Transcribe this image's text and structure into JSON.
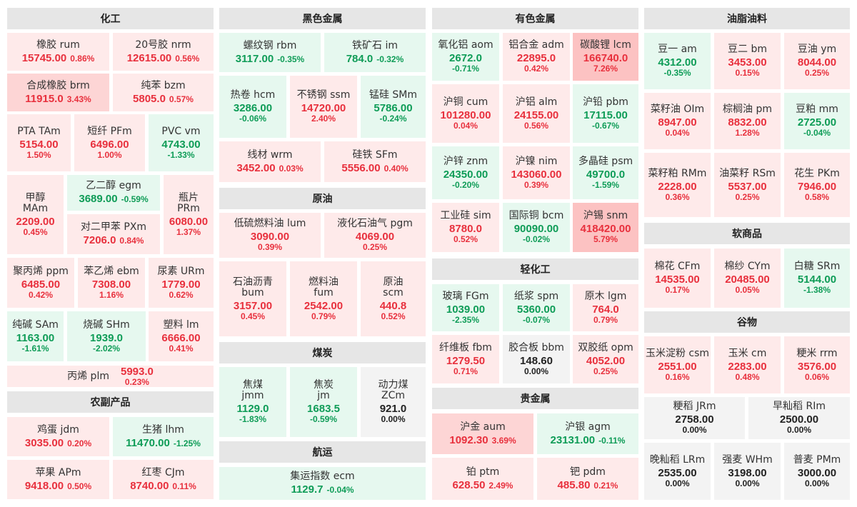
{
  "colors": {
    "up": "#e8303d",
    "down": "#0e9c57",
    "flat": "#222222",
    "header_bg": "#e6e6e6"
  },
  "sectors": {
    "chemical": "化工",
    "ferrous": "黑色金属",
    "nonferrous": "有色金属",
    "oils": "油脂油料",
    "crude": "原油",
    "agri": "农副产品",
    "coal": "煤炭",
    "light_chem": "轻化工",
    "softs": "软商品",
    "shipping": "航运",
    "precious": "贵金属",
    "grains": "谷物"
  },
  "contracts": [
    {
      "key": "rum",
      "name": "橡胶  rum",
      "price": "15745.00",
      "pct": "0.86%",
      "dir": "up"
    },
    {
      "key": "nrm",
      "name": "20号胶  nrm",
      "price": "12615.00",
      "pct": "0.56%",
      "dir": "up"
    },
    {
      "key": "brm",
      "name": "合成橡胶  brm",
      "price": "11915.0",
      "pct": "3.43%",
      "dir": "up"
    },
    {
      "key": "bzm",
      "name": "纯苯  bzm",
      "price": "5805.0",
      "pct": "0.57%",
      "dir": "up"
    },
    {
      "key": "tam",
      "name": "PTA  TAm",
      "price": "5154.00",
      "pct": "1.50%",
      "dir": "up"
    },
    {
      "key": "pfm",
      "name": "短纤  PFm",
      "price": "6496.00",
      "pct": "1.00%",
      "dir": "up"
    },
    {
      "key": "vm",
      "name": "PVC  vm",
      "price": "4743.00",
      "pct": "-1.33%",
      "dir": "dn"
    },
    {
      "key": "mam",
      "name": "甲醇\nMAm",
      "price": "2209.00",
      "pct": "0.45%",
      "dir": "up"
    },
    {
      "key": "egm",
      "name": "乙二醇  egm",
      "price": "3689.00",
      "pct": "-0.59%",
      "dir": "dn"
    },
    {
      "key": "pxm",
      "name": "对二甲苯  PXm",
      "price": "7206.0",
      "pct": "0.84%",
      "dir": "up"
    },
    {
      "key": "prm",
      "name": "瓶片\nPRm",
      "price": "6080.00",
      "pct": "1.37%",
      "dir": "up"
    },
    {
      "key": "ppm",
      "name": "聚丙烯  ppm",
      "price": "6485.00",
      "pct": "0.42%",
      "dir": "up"
    },
    {
      "key": "ebm",
      "name": "苯乙烯  ebm",
      "price": "7308.00",
      "pct": "1.16%",
      "dir": "up"
    },
    {
      "key": "urm",
      "name": "尿素  URm",
      "price": "1779.00",
      "pct": "0.62%",
      "dir": "up"
    },
    {
      "key": "sam",
      "name": "纯碱  SAm",
      "price": "1163.00",
      "pct": "-1.61%",
      "dir": "dn"
    },
    {
      "key": "shm",
      "name": "烧碱  SHm",
      "price": "1939.0",
      "pct": "-2.02%",
      "dir": "dn"
    },
    {
      "key": "lm",
      "name": "塑料  lm",
      "price": "6666.00",
      "pct": "0.41%",
      "dir": "up"
    },
    {
      "key": "plm",
      "name": "丙烯  plm",
      "price": "5993.0",
      "pct": "0.23%",
      "dir": "up"
    },
    {
      "key": "jdm",
      "name": "鸡蛋  jdm",
      "price": "3035.00",
      "pct": "0.20%",
      "dir": "up"
    },
    {
      "key": "lhm",
      "name": "生猪  lhm",
      "price": "11470.00",
      "pct": "-1.25%",
      "dir": "dn"
    },
    {
      "key": "apm",
      "name": "苹果  APm",
      "price": "9418.00",
      "pct": "0.50%",
      "dir": "up"
    },
    {
      "key": "cjm",
      "name": "红枣  CJm",
      "price": "8740.00",
      "pct": "0.11%",
      "dir": "up"
    },
    {
      "key": "rbm",
      "name": "螺纹钢  rbm",
      "price": "3117.00",
      "pct": "-0.35%",
      "dir": "dn"
    },
    {
      "key": "im",
      "name": "铁矿石  im",
      "price": "784.0",
      "pct": "-0.32%",
      "dir": "dn"
    },
    {
      "key": "hcm",
      "name": "热卷  hcm",
      "price": "3286.00",
      "pct": "-0.06%",
      "dir": "dn"
    },
    {
      "key": "ssm",
      "name": "不锈钢  ssm",
      "price": "14720.00",
      "pct": "2.40%",
      "dir": "up"
    },
    {
      "key": "smm",
      "name": "锰硅  SMm",
      "price": "5786.00",
      "pct": "-0.24%",
      "dir": "dn"
    },
    {
      "key": "wrm",
      "name": "线材  wrm",
      "price": "3452.00",
      "pct": "0.03%",
      "dir": "up"
    },
    {
      "key": "sfm",
      "name": "硅铁  SFm",
      "price": "5556.00",
      "pct": "0.40%",
      "dir": "up"
    },
    {
      "key": "lum",
      "name": "低硫燃料油  lum",
      "price": "3090.00",
      "pct": "0.39%",
      "dir": "up"
    },
    {
      "key": "pgm",
      "name": "液化石油气  pgm",
      "price": "4069.00",
      "pct": "0.25%",
      "dir": "up"
    },
    {
      "key": "bum",
      "name": "石油沥青\nbum",
      "price": "3157.00",
      "pct": "0.45%",
      "dir": "up"
    },
    {
      "key": "fum",
      "name": "燃料油\nfum",
      "price": "2542.00",
      "pct": "0.79%",
      "dir": "up"
    },
    {
      "key": "scm",
      "name": "原油\nscm",
      "price": "440.8",
      "pct": "0.52%",
      "dir": "up"
    },
    {
      "key": "jmm",
      "name": "焦煤\njmm",
      "price": "1129.0",
      "pct": "-1.83%",
      "dir": "dn"
    },
    {
      "key": "jm",
      "name": "焦炭\njm",
      "price": "1683.5",
      "pct": "-0.59%",
      "dir": "dn"
    },
    {
      "key": "zcm",
      "name": "动力煤\nZCm",
      "price": "921.0",
      "pct": "0.00%",
      "dir": "fl"
    },
    {
      "key": "ecm",
      "name": "集运指数  ecm",
      "price": "1129.7",
      "pct": "-0.04%",
      "dir": "dn"
    },
    {
      "key": "aom",
      "name": "氧化铝  aom",
      "price": "2672.0",
      "pct": "-0.71%",
      "dir": "dn"
    },
    {
      "key": "adm",
      "name": "铝合金  adm",
      "price": "22895.0",
      "pct": "0.42%",
      "dir": "up"
    },
    {
      "key": "lcm",
      "name": "碳酸锂  lcm",
      "price": "166740.0",
      "pct": "7.26%",
      "dir": "up"
    },
    {
      "key": "cum",
      "name": "沪铜  cum",
      "price": "101280.00",
      "pct": "0.04%",
      "dir": "up"
    },
    {
      "key": "alm",
      "name": "沪铝  alm",
      "price": "24155.00",
      "pct": "0.56%",
      "dir": "up"
    },
    {
      "key": "pbm",
      "name": "沪铅  pbm",
      "price": "17115.00",
      "pct": "-0.67%",
      "dir": "dn"
    },
    {
      "key": "znm",
      "name": "沪锌  znm",
      "price": "24350.00",
      "pct": "-0.20%",
      "dir": "dn"
    },
    {
      "key": "nim",
      "name": "沪镍  nim",
      "price": "143060.00",
      "pct": "0.39%",
      "dir": "up"
    },
    {
      "key": "psm",
      "name": "多晶硅  psm",
      "price": "49700.0",
      "pct": "-1.59%",
      "dir": "dn"
    },
    {
      "key": "sim",
      "name": "工业硅  sim",
      "price": "8780.0",
      "pct": "0.52%",
      "dir": "up"
    },
    {
      "key": "bcm",
      "name": "国际铜  bcm",
      "price": "90090.00",
      "pct": "-0.02%",
      "dir": "dn"
    },
    {
      "key": "snm",
      "name": "沪锡  snm",
      "price": "418420.00",
      "pct": "5.79%",
      "dir": "up"
    },
    {
      "key": "fgm",
      "name": "玻璃  FGm",
      "price": "1039.00",
      "pct": "-2.35%",
      "dir": "dn"
    },
    {
      "key": "spm",
      "name": "纸浆  spm",
      "price": "5360.00",
      "pct": "-0.07%",
      "dir": "dn"
    },
    {
      "key": "lgm",
      "name": "原木  lgm",
      "price": "764.0",
      "pct": "0.79%",
      "dir": "up"
    },
    {
      "key": "fbm",
      "name": "纤维板  fbm",
      "price": "1279.50",
      "pct": "0.71%",
      "dir": "up"
    },
    {
      "key": "bbm",
      "name": "胶合板  bbm",
      "price": "148.60",
      "pct": "0.00%",
      "dir": "fl"
    },
    {
      "key": "opm",
      "name": "双胶纸  opm",
      "price": "4052.00",
      "pct": "0.25%",
      "dir": "up"
    },
    {
      "key": "aum",
      "name": "沪金 aum",
      "price": "1092.30",
      "pct": "3.69%",
      "dir": "up"
    },
    {
      "key": "agm",
      "name": "沪银 agm",
      "price": "23131.00",
      "pct": "-0.11%",
      "dir": "dn"
    },
    {
      "key": "ptm",
      "name": "铂 ptm",
      "price": "628.50",
      "pct": "2.49%",
      "dir": "up"
    },
    {
      "key": "pdm",
      "name": "钯 pdm",
      "price": "485.80",
      "pct": "0.21%",
      "dir": "up"
    },
    {
      "key": "am",
      "name": "豆一  am",
      "price": "4312.00",
      "pct": "-0.35%",
      "dir": "dn"
    },
    {
      "key": "bm",
      "name": "豆二  bm",
      "price": "3453.00",
      "pct": "0.15%",
      "dir": "up"
    },
    {
      "key": "ym",
      "name": "豆油  ym",
      "price": "8044.00",
      "pct": "0.25%",
      "dir": "up"
    },
    {
      "key": "oim",
      "name": "菜籽油  OIm",
      "price": "8947.00",
      "pct": "0.04%",
      "dir": "up"
    },
    {
      "key": "pm",
      "name": "棕榈油  pm",
      "price": "8832.00",
      "pct": "1.28%",
      "dir": "up"
    },
    {
      "key": "mm",
      "name": "豆粕  mm",
      "price": "2725.00",
      "pct": "-0.04%",
      "dir": "dn"
    },
    {
      "key": "rmm",
      "name": "菜籽粕  RMm",
      "price": "2228.00",
      "pct": "0.36%",
      "dir": "up"
    },
    {
      "key": "rsm",
      "name": "油菜籽  RSm",
      "price": "5537.00",
      "pct": "0.25%",
      "dir": "up"
    },
    {
      "key": "pkm",
      "name": "花生  PKm",
      "price": "7946.00",
      "pct": "0.58%",
      "dir": "up"
    },
    {
      "key": "cfm",
      "name": "棉花  CFm",
      "price": "14535.00",
      "pct": "0.17%",
      "dir": "up"
    },
    {
      "key": "cym",
      "name": "棉纱  CYm",
      "price": "20485.00",
      "pct": "0.05%",
      "dir": "up"
    },
    {
      "key": "srm",
      "name": "白糖  SRm",
      "price": "5144.00",
      "pct": "-1.38%",
      "dir": "dn"
    },
    {
      "key": "csm",
      "name": "玉米淀粉  csm",
      "price": "2551.00",
      "pct": "0.16%",
      "dir": "up"
    },
    {
      "key": "cm",
      "name": "玉米  cm",
      "price": "2283.00",
      "pct": "0.48%",
      "dir": "up"
    },
    {
      "key": "rrm",
      "name": "粳米  rrm",
      "price": "3576.00",
      "pct": "0.06%",
      "dir": "up"
    },
    {
      "key": "jrm",
      "name": "粳稻  JRm",
      "price": "2758.00",
      "pct": "0.00%",
      "dir": "fl"
    },
    {
      "key": "rim",
      "name": "早籼稻  RIm",
      "price": "2500.00",
      "pct": "0.00%",
      "dir": "fl"
    },
    {
      "key": "lrm",
      "name": "晚籼稻  LRm",
      "price": "2535.00",
      "pct": "0.00%",
      "dir": "fl"
    },
    {
      "key": "whm",
      "name": "强麦  WHm",
      "price": "3198.00",
      "pct": "0.00%",
      "dir": "fl"
    },
    {
      "key": "pmm",
      "name": "普麦  PMm",
      "price": "3000.00",
      "pct": "0.00%",
      "dir": "fl"
    }
  ]
}
